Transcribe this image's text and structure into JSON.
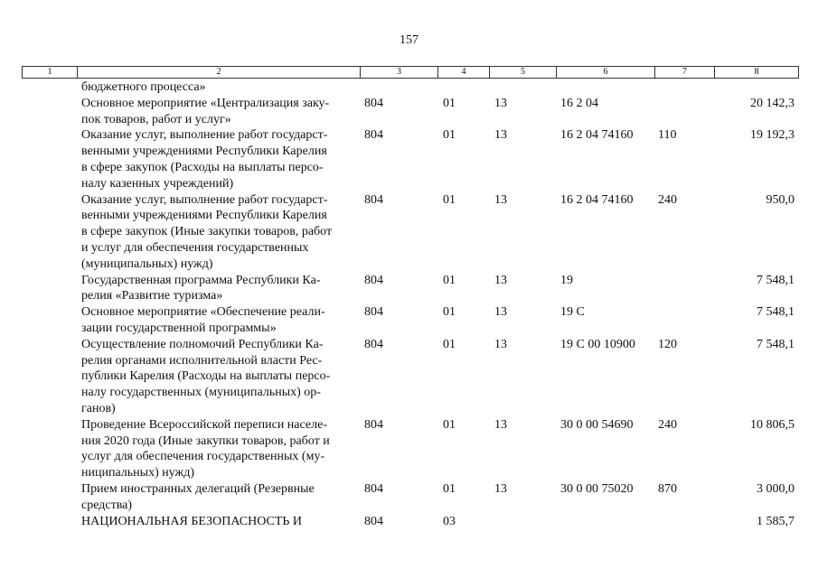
{
  "page_number": "157",
  "columns": [
    "1",
    "2",
    "3",
    "4",
    "5",
    "6",
    "7",
    "8"
  ],
  "rows": [
    {
      "lines": [
        "бюджетного процесса»"
      ],
      "c3": "",
      "c4": "",
      "c5": "",
      "c6": "",
      "c7": "",
      "c8": ""
    },
    {
      "lines": [
        "Основное мероприятие «Централизация заку-",
        "пок товаров, работ и услуг»"
      ],
      "c3": "804",
      "c4": "01",
      "c5": "13",
      "c6": "16 2 04",
      "c7": "",
      "c8": "20 142,3"
    },
    {
      "lines": [
        "Оказание услуг, выполнение работ государст-",
        "венными учреждениями Республики Карелия",
        "в сфере закупок (Расходы на выплаты персо-",
        "налу казенных учреждений)"
      ],
      "c3": "804",
      "c4": "01",
      "c5": "13",
      "c6": "16 2 04 74160",
      "c7": "110",
      "c8": "19 192,3"
    },
    {
      "lines": [
        "Оказание услуг, выполнение работ государст-",
        "венными учреждениями Республики Карелия",
        "в сфере закупок (Иные закупки товаров, работ",
        "и услуг для обеспечения государственных",
        "(муниципальных) нужд)"
      ],
      "c3": "804",
      "c4": "01",
      "c5": "13",
      "c6": "16 2 04 74160",
      "c7": "240",
      "c8": "950,0"
    },
    {
      "lines": [
        "Государственная программа Республики Ка-",
        "релия «Развитие туризма»"
      ],
      "c3": "804",
      "c4": "01",
      "c5": "13",
      "c6": "19",
      "c7": "",
      "c8": "7 548,1"
    },
    {
      "lines": [
        "Основное мероприятие «Обеспечение реали-",
        "зации государственной программы»"
      ],
      "c3": "804",
      "c4": "01",
      "c5": "13",
      "c6": "19 С",
      "c7": "",
      "c8": "7 548,1"
    },
    {
      "lines": [
        "Осуществление полномочий Республики Ка-",
        "релия органами исполнительной власти Рес-",
        "публики Карелия (Расходы на выплаты персо-",
        "налу государственных (муниципальных) ор-",
        "ганов)"
      ],
      "c3": "804",
      "c4": "01",
      "c5": "13",
      "c6": "19 С 00 10900",
      "c7": "120",
      "c8": "7 548,1"
    },
    {
      "lines": [
        "Проведение Всероссийской переписи населе-",
        "ния 2020 года (Иные закупки товаров, работ и",
        "услуг для обеспечения государственных (му-",
        "ниципальных) нужд)"
      ],
      "c3": "804",
      "c4": "01",
      "c5": "13",
      "c6": "30 0 00 54690",
      "c7": "240",
      "c8": "10 806,5"
    },
    {
      "lines": [
        "Прием иностранных делегаций (Резервные",
        "средства)"
      ],
      "c3": "804",
      "c4": "01",
      "c5": "13",
      "c6": "30 0 00 75020",
      "c7": "870",
      "c8": "3 000,0"
    },
    {
      "lines": [
        "НАЦИОНАЛЬНАЯ БЕЗОПАСНОСТЬ И"
      ],
      "c3": "804",
      "c4": "03",
      "c5": "",
      "c6": "",
      "c7": "",
      "c8": "1 585,7"
    }
  ]
}
